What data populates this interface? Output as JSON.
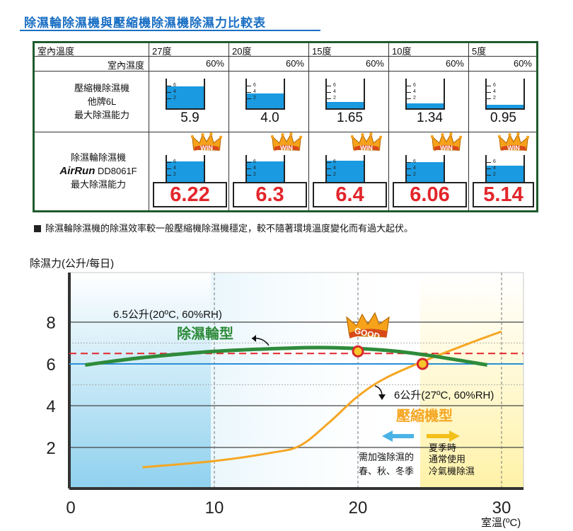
{
  "title": "除濕輪除濕機與壓縮機除濕機除濕力比較表",
  "table": {
    "header_label": "室內溫度",
    "humidity_label": "室內濕度",
    "temps": [
      "27度",
      "20度",
      "15度",
      "10度",
      "5度"
    ],
    "humidity": [
      "60%",
      "60%",
      "60%",
      "60%",
      "60%"
    ],
    "row1": {
      "line1": "壓縮機除濕機",
      "line2": "他牌6L",
      "line3": "最大除濕能力",
      "values": [
        "5.9",
        "4.0",
        "1.65",
        "1.34",
        "0.95"
      ],
      "levels": [
        5.9,
        4.0,
        1.65,
        1.34,
        0.95
      ]
    },
    "row2": {
      "line1": "除濕輪除濕機",
      "brand": "AirRun",
      "model": "DD8061F",
      "line3": "最大除濕能力",
      "values": [
        "6.22",
        "6.3",
        "6.4",
        "6.06",
        "5.14"
      ],
      "levels": [
        6.22,
        6.3,
        6.4,
        6.06,
        5.14
      ]
    },
    "beaker_ticks": [
      "6",
      "4",
      "2"
    ],
    "win_badge": "WIN"
  },
  "note": "除濕輪除濕機的除濕效率較一般壓縮機除濕機穩定，較不隨著環境溫度變化而有過大起伏。",
  "colors": {
    "title": "#1a6fc4",
    "table_border": "#1f5b2e",
    "water": "#1a9ae0",
    "red_value": "#e2262b",
    "green_curve": "#2e8b3a",
    "orange_curve": "#f5a623",
    "red_dash": "#e2262b",
    "blue_line": "#2a8fd8"
  },
  "chart_data": {
    "type": "line",
    "ylabel": "除濕力(公升/每日)",
    "xlabel": "室溫(ºC)",
    "xlim": [
      0,
      31
    ],
    "ylim": [
      0,
      10
    ],
    "x_ticks": [
      "0",
      "10",
      "20",
      "30"
    ],
    "y_ticks": [
      "2",
      "4",
      "6",
      "8"
    ],
    "series": [
      {
        "name": "除濕輪型",
        "x": [
          1,
          5,
          10,
          15,
          18,
          22,
          25,
          29
        ],
        "values": [
          5.95,
          6.3,
          6.6,
          6.75,
          6.78,
          6.65,
          6.4,
          5.95
        ]
      },
      {
        "name": "壓縮機型",
        "x": [
          5,
          10,
          14,
          16,
          18,
          20,
          22,
          25,
          28,
          30
        ],
        "values": [
          1.05,
          1.35,
          1.75,
          2.1,
          3.2,
          4.45,
          5.35,
          6.25,
          7.05,
          7.55
        ]
      }
    ],
    "reference_lines": [
      {
        "y": 6.5,
        "style": "dashed",
        "color": "#e2262b"
      },
      {
        "y": 6.0,
        "style": "solid",
        "color": "#2a8fd8"
      }
    ],
    "annotations": {
      "green_label": "6.5公升(20ºC, 60%RH)",
      "orange_label": "6公升(27ºC, 60%RH)",
      "good_badge": "GOOD",
      "left_zone_line1": "需加強除濕的",
      "left_zone_line2": "春、秋、冬季",
      "right_zone_line1": "夏季時",
      "right_zone_line2": "通常使用",
      "right_zone_line3": "冷氣機除濕"
    },
    "markers": [
      {
        "x": 20,
        "y": 6.6
      },
      {
        "x": 24.5,
        "y": 6.0
      }
    ],
    "grid": true
  }
}
